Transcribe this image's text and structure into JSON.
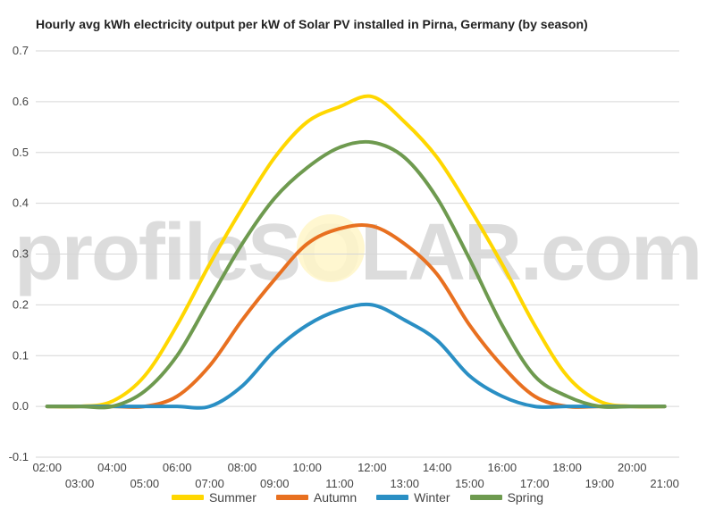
{
  "chart_data": {
    "type": "line",
    "title": "Hourly avg kWh electricity output per kW of Solar PV installed in Pirna, Germany (by season)",
    "watermark": "profileSOLAR.com",
    "ylim": [
      -0.1,
      0.7
    ],
    "yticks": [
      "0.7",
      "0.6",
      "0.5",
      "0.4",
      "0.3",
      "0.2",
      "0.1",
      "0.0",
      "-0.1"
    ],
    "xticks_upper": [
      "02:00",
      "04:00",
      "06:00",
      "08:00",
      "10:00",
      "12:00",
      "14:00",
      "16:00",
      "18:00",
      "20:00"
    ],
    "xticks_lower": [
      "03:00",
      "05:00",
      "07:00",
      "09:00",
      "11:00",
      "13:00",
      "15:00",
      "17:00",
      "19:00",
      "21:00"
    ],
    "x": [
      2,
      3,
      4,
      5,
      6,
      7,
      8,
      9,
      10,
      11,
      12,
      13,
      14,
      15,
      16,
      17,
      18,
      19,
      20,
      21
    ],
    "series": [
      {
        "name": "Summer",
        "color": "#ffd700",
        "values": [
          0.0,
          0.0,
          0.01,
          0.06,
          0.16,
          0.28,
          0.39,
          0.49,
          0.56,
          0.59,
          0.61,
          0.56,
          0.49,
          0.39,
          0.28,
          0.16,
          0.06,
          0.01,
          0.0,
          0.0
        ]
      },
      {
        "name": "Autumn",
        "color": "#e87020",
        "values": [
          0.0,
          0.0,
          0.0,
          0.0,
          0.02,
          0.08,
          0.17,
          0.25,
          0.32,
          0.35,
          0.355,
          0.32,
          0.26,
          0.16,
          0.08,
          0.02,
          0.0,
          0.0,
          0.0,
          0.0
        ]
      },
      {
        "name": "Winter",
        "color": "#2a8fc4",
        "values": [
          0.0,
          0.0,
          0.0,
          0.0,
          0.0,
          0.0,
          0.04,
          0.11,
          0.16,
          0.19,
          0.2,
          0.17,
          0.13,
          0.06,
          0.02,
          0.0,
          0.0,
          0.0,
          0.0,
          0.0
        ]
      },
      {
        "name": "Spring",
        "color": "#6e9a4f",
        "values": [
          0.0,
          0.0,
          0.0,
          0.03,
          0.1,
          0.21,
          0.32,
          0.41,
          0.47,
          0.51,
          0.52,
          0.49,
          0.41,
          0.29,
          0.16,
          0.06,
          0.02,
          0.0,
          0.0,
          0.0
        ]
      }
    ],
    "legend": "bottom",
    "grid": true
  }
}
